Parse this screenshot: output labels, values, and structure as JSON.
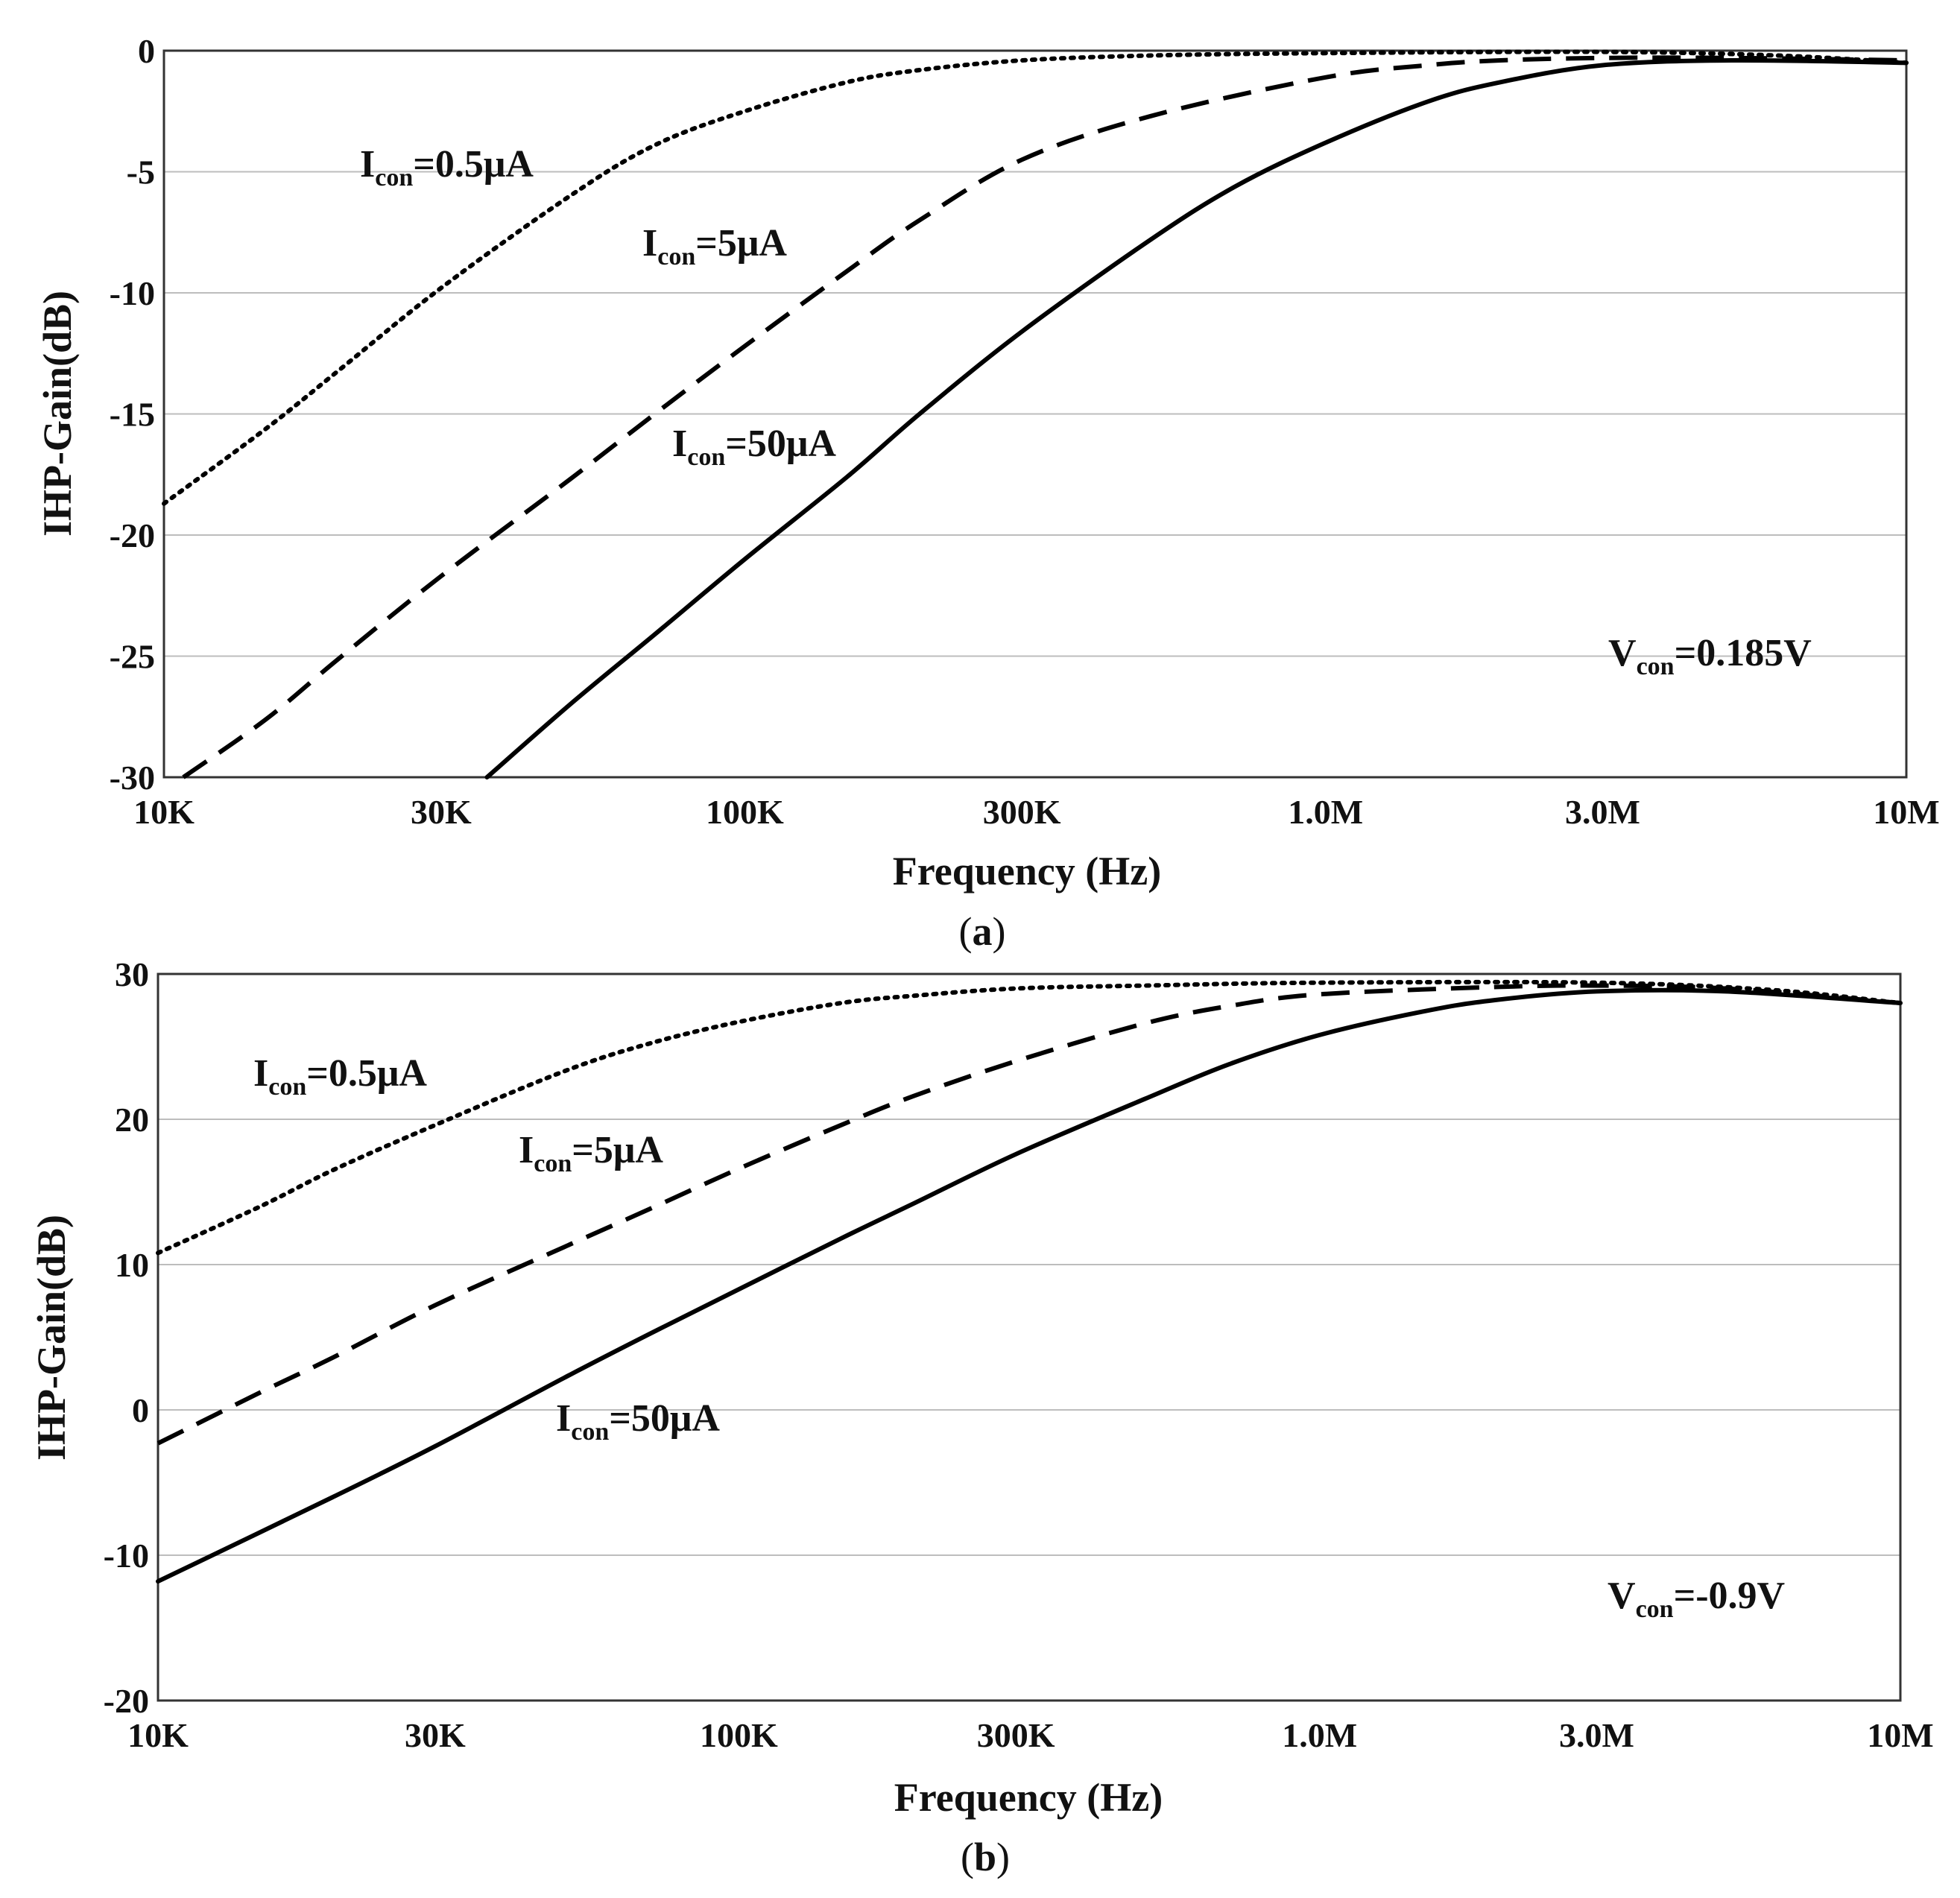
{
  "chart_data": [
    {
      "type": "line",
      "panel_label": "a",
      "xlabel": "Frequency (Hz)",
      "ylabel": "IHP-Gain(dB)",
      "x_scale": "log",
      "xlim": [
        10000,
        10000000
      ],
      "ylim": [
        -30,
        0
      ],
      "x_ticks": [
        10000,
        30000,
        100000,
        300000,
        1000000,
        3000000,
        10000000
      ],
      "x_tick_labels": [
        "10K",
        "30K",
        "100K",
        "300K",
        "1.0M",
        "3.0M",
        "10M"
      ],
      "y_ticks": [
        0,
        -5,
        -10,
        -15,
        -20,
        -25,
        -30
      ],
      "y_tick_labels": [
        "0",
        "-5",
        "-10",
        "-15",
        "-20",
        "-25",
        "-30"
      ],
      "series": [
        {
          "name": "Icon=0.5μA",
          "style": "dotted",
          "x": [
            10000,
            15000,
            20000,
            30000,
            50000,
            70000,
            100000,
            150000,
            200000,
            300000,
            500000,
            1000000,
            3000000,
            6000000,
            10000000
          ],
          "y": [
            -18.7,
            -15.6,
            -13.2,
            -9.8,
            -6.0,
            -3.9,
            -2.5,
            -1.3,
            -0.8,
            -0.4,
            -0.2,
            -0.1,
            -0.05,
            -0.2,
            -0.5
          ]
        },
        {
          "name": "Icon=5μA",
          "style": "dashed",
          "x": [
            10800,
            15000,
            20000,
            30000,
            50000,
            70000,
            100000,
            150000,
            200000,
            300000,
            500000,
            1000000,
            1500000,
            2000000,
            3000000,
            5000000,
            10000000
          ],
          "y": [
            -30.0,
            -27.6,
            -25.1,
            -21.7,
            -17.7,
            -15.0,
            -12.2,
            -9.1,
            -7.0,
            -4.5,
            -2.7,
            -1.1,
            -0.6,
            -0.4,
            -0.3,
            -0.3,
            -0.4
          ]
        },
        {
          "name": "Icon=50μA",
          "style": "solid",
          "x": [
            36000,
            50000,
            70000,
            100000,
            150000,
            200000,
            300000,
            500000,
            700000,
            1000000,
            1500000,
            2000000,
            3000000,
            5000000,
            10000000
          ],
          "y": [
            -30.0,
            -27.0,
            -24.1,
            -21.0,
            -17.6,
            -15.0,
            -11.6,
            -7.8,
            -5.6,
            -3.8,
            -2.1,
            -1.3,
            -0.6,
            -0.4,
            -0.5
          ]
        }
      ],
      "annotations": [
        {
          "main": "I",
          "sub": "con",
          "rest": "=0.5μA"
        },
        {
          "main": "I",
          "sub": "con",
          "rest": "=5μA"
        },
        {
          "main": "I",
          "sub": "con",
          "rest": "=50μA"
        },
        {
          "main": "V",
          "sub": "con",
          "rest": "=0.185V"
        }
      ]
    },
    {
      "type": "line",
      "panel_label": "b",
      "xlabel": "Frequency (Hz)",
      "ylabel": "IHP-Gain(dB)",
      "x_scale": "log",
      "xlim": [
        10000,
        10000000
      ],
      "ylim": [
        -20,
        30
      ],
      "x_ticks": [
        10000,
        30000,
        100000,
        300000,
        1000000,
        3000000,
        10000000
      ],
      "x_tick_labels": [
        "10K",
        "30K",
        "100K",
        "300K",
        "1.0M",
        "3.0M",
        "10M"
      ],
      "y_ticks": [
        30,
        20,
        10,
        0,
        -10,
        -20
      ],
      "y_tick_labels": [
        "30",
        "20",
        "10",
        "0",
        "-10",
        "-20"
      ],
      "series": [
        {
          "name": "Icon=0.5μA",
          "style": "dotted",
          "x": [
            10000,
            15000,
            20000,
            30000,
            50000,
            70000,
            100000,
            150000,
            200000,
            300000,
            500000,
            1000000,
            3000000,
            6000000,
            10000000
          ],
          "y": [
            10.8,
            14.0,
            16.5,
            19.6,
            23.3,
            25.2,
            26.7,
            28.0,
            28.5,
            29.0,
            29.2,
            29.4,
            29.4,
            28.9,
            28.0
          ]
        },
        {
          "name": "Icon=5μA",
          "style": "dashed",
          "x": [
            10000,
            15000,
            20000,
            30000,
            50000,
            70000,
            100000,
            150000,
            200000,
            300000,
            500000,
            700000,
            1000000,
            2000000,
            3000000,
            5000000,
            10000000
          ],
          "y": [
            -2.3,
            1.2,
            3.6,
            7.2,
            11.2,
            13.8,
            16.6,
            19.6,
            21.6,
            24.0,
            26.6,
            27.8,
            28.6,
            29.1,
            29.2,
            29.0,
            28.0
          ]
        },
        {
          "name": "Icon=50μA",
          "style": "solid",
          "x": [
            10000,
            20000,
            30000,
            50000,
            70000,
            100000,
            150000,
            200000,
            300000,
            500000,
            700000,
            1000000,
            1500000,
            2000000,
            3000000,
            5000000,
            10000000
          ],
          "y": [
            -11.8,
            -6.0,
            -2.5,
            2.2,
            5.2,
            8.3,
            11.8,
            14.2,
            17.6,
            21.4,
            23.8,
            25.8,
            27.4,
            28.2,
            28.8,
            28.8,
            28.0
          ]
        }
      ],
      "annotations": [
        {
          "main": "I",
          "sub": "con",
          "rest": "=0.5μA"
        },
        {
          "main": "I",
          "sub": "con",
          "rest": "=5μA"
        },
        {
          "main": "I",
          "sub": "con",
          "rest": "=50μA"
        },
        {
          "main": "V",
          "sub": "con",
          "rest": "=-0.9V"
        }
      ]
    }
  ]
}
